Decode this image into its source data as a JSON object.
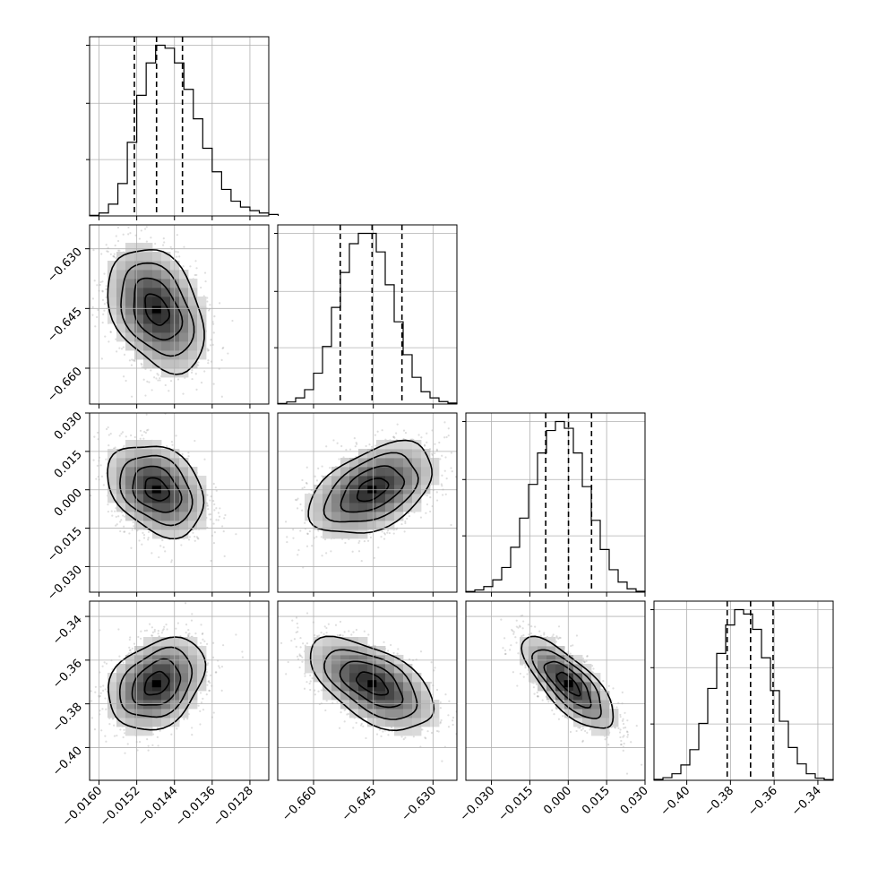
{
  "chart_data": {
    "type": "corner",
    "grid": true,
    "quantiles": [
      0.16,
      0.5,
      0.84
    ],
    "parameters": [
      {
        "range": [
          -0.0162,
          -0.0124
        ],
        "ticks": [
          -0.016,
          -0.0152,
          -0.0144,
          -0.0136,
          -0.0128
        ],
        "tick_labels": [
          "−0.0160",
          "−0.0152",
          "−0.0144",
          "−0.0136",
          "−0.0128"
        ],
        "quantile_values": [
          -0.01525,
          -0.01478,
          -0.01423
        ],
        "hist_start": -0.0162,
        "hist_step": 0.0002,
        "hist_counts": [
          2,
          10,
          40,
          110,
          250,
          410,
          520,
          580,
          570,
          520,
          430,
          330,
          230,
          150,
          90,
          50,
          30,
          18,
          10,
          5
        ]
      },
      {
        "range": [
          -0.669,
          -0.624
        ],
        "ticks": [
          -0.66,
          -0.645,
          -0.63
        ],
        "tick_labels": [
          "−0.660",
          "−0.645",
          "−0.630"
        ],
        "quantile_values": [
          -0.6533,
          -0.6453,
          -0.6378
        ],
        "hist_start": -0.669,
        "hist_step": 0.00225,
        "hist_counts": [
          3,
          10,
          30,
          70,
          150,
          280,
          470,
          640,
          780,
          830,
          830,
          740,
          580,
          400,
          240,
          130,
          60,
          30,
          12,
          5
        ]
      },
      {
        "range": [
          -0.04,
          0.03
        ],
        "ticks": [
          -0.03,
          -0.015,
          0.0,
          0.015,
          0.03
        ],
        "tick_labels": [
          "−0.030",
          "−0.015",
          "0.000",
          "0.015",
          "0.030"
        ],
        "quantile_values": [
          -0.0088,
          0.0001,
          0.0091
        ],
        "hist_start": -0.04,
        "hist_step": 0.0035,
        "hist_counts": [
          3,
          10,
          25,
          55,
          110,
          200,
          330,
          480,
          620,
          720,
          760,
          730,
          620,
          470,
          320,
          190,
          100,
          45,
          15,
          4
        ]
      },
      {
        "range": [
          -0.415,
          -0.333
        ],
        "ticks": [
          -0.4,
          -0.38,
          -0.36,
          -0.34
        ],
        "tick_labels": [
          "−0.40",
          "−0.38",
          "−0.36",
          "−0.34"
        ],
        "quantile_values": [
          -0.3815,
          -0.3708,
          -0.3605
        ],
        "hist_start": -0.415,
        "hist_step": 0.0041,
        "hist_counts": [
          4,
          12,
          30,
          70,
          140,
          260,
          420,
          580,
          710,
          780,
          760,
          690,
          560,
          410,
          270,
          150,
          75,
          30,
          10,
          3
        ]
      }
    ],
    "correlations": {
      "1-0": -0.35,
      "2-0": -0.3,
      "2-1": 0.45,
      "3-0": 0.3,
      "3-1": -0.55,
      "3-2": -0.75
    }
  }
}
